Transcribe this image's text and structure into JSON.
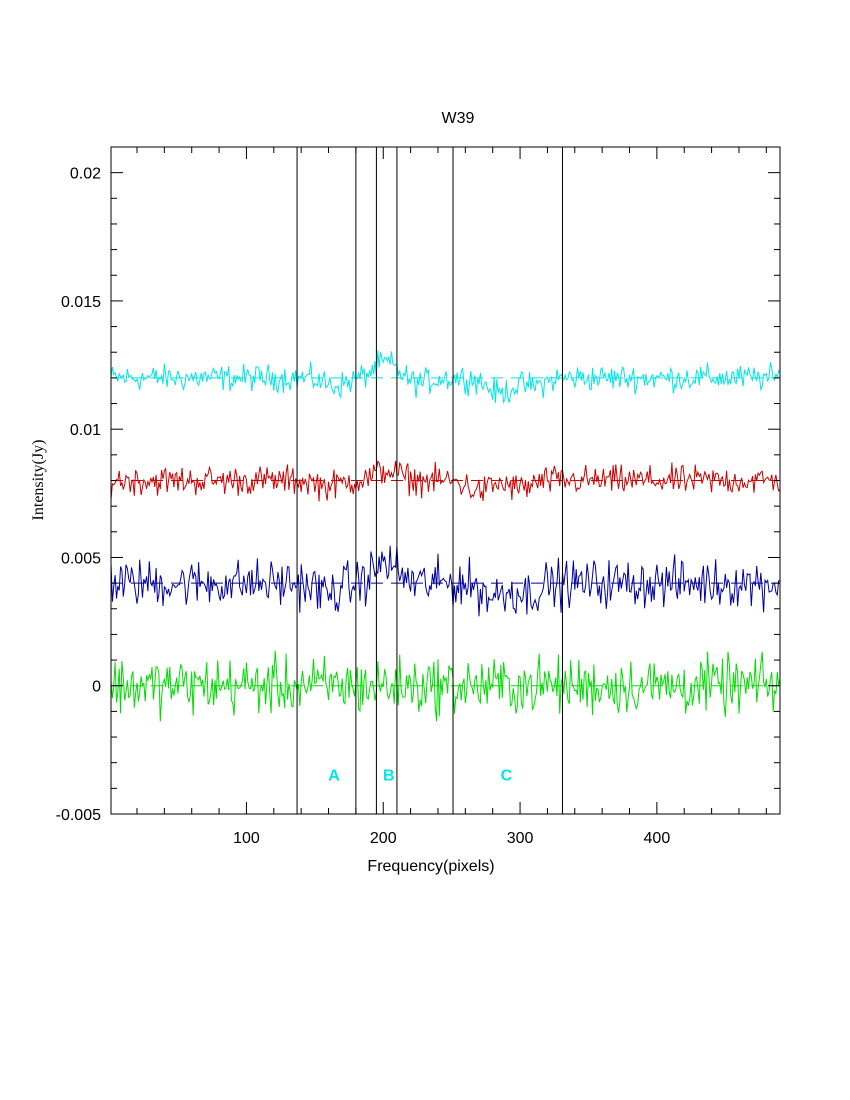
{
  "chart_data": {
    "type": "line",
    "title": "W39",
    "xlabel": "Frequency(pixels)",
    "ylabel": "Intensity(Jy)",
    "xlim": [
      1,
      490
    ],
    "ylim": [
      -0.005,
      0.021
    ],
    "x_ticks": [
      100,
      200,
      300,
      400
    ],
    "x_tick_labels": [
      "100",
      "200",
      "300",
      "400"
    ],
    "y_ticks": [
      -0.005,
      0,
      0.005,
      0.01,
      0.015,
      0.02
    ],
    "y_tick_labels": [
      "-0.005",
      "0",
      "0.005",
      "0.01",
      "0.015",
      "0.02"
    ],
    "vertical_lines_x": [
      137,
      180,
      195,
      210,
      251,
      331
    ],
    "region_labels": [
      {
        "text": "A",
        "x": 164,
        "y": -0.0037
      },
      {
        "text": "B",
        "x": 204,
        "y": -0.0037
      },
      {
        "text": "C",
        "x": 290,
        "y": -0.0037
      }
    ],
    "series": [
      {
        "color": "#00e5e5",
        "baseline": 0.012,
        "amplitude": 0.00025,
        "features": [
          {
            "x": 165,
            "shift": -0.0003
          },
          {
            "x": 202,
            "shift": 0.0006
          },
          {
            "x": 225,
            "shift": -0.0002
          },
          {
            "x": 285,
            "shift": -0.0006
          },
          {
            "x": 310,
            "shift": -0.0003
          }
        ]
      },
      {
        "color": "#cc0000",
        "baseline": 0.008,
        "amplitude": 0.00028,
        "features": [
          {
            "x": 160,
            "shift": -0.0002
          },
          {
            "x": 203,
            "shift": 0.0004
          },
          {
            "x": 270,
            "shift": -0.0004
          },
          {
            "x": 300,
            "shift": -0.0003
          }
        ]
      },
      {
        "color": "#0000a0",
        "baseline": 0.004,
        "amplitude": 0.00045,
        "features": [
          {
            "x": 160,
            "shift": -0.0004
          },
          {
            "x": 202,
            "shift": 0.0008
          },
          {
            "x": 280,
            "shift": -0.0005
          },
          {
            "x": 305,
            "shift": -0.0004
          }
        ]
      },
      {
        "color": "#00dd00",
        "baseline": 0.0,
        "amplitude": 0.00055,
        "features": []
      }
    ],
    "colors": {
      "axes": "#000000",
      "labels": "#00e5e5",
      "baseline_dash": "dashed"
    },
    "grid": false,
    "legend": "none"
  }
}
